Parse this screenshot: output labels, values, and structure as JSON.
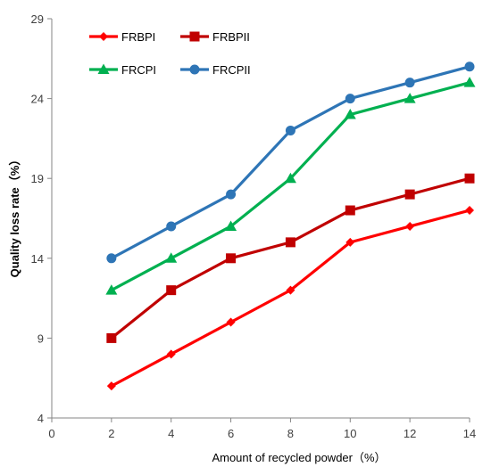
{
  "chart_data": {
    "type": "line",
    "title": "",
    "xlabel": "Amount of recycled powder（%）",
    "ylabel": "Quality loss rate（%）",
    "xlim": [
      0,
      14
    ],
    "ylim": [
      4,
      29
    ],
    "x_ticks": [
      "0",
      "2",
      "4",
      "6",
      "8",
      "10",
      "12",
      "14"
    ],
    "y_ticks": [
      "4",
      "9",
      "14",
      "19",
      "24",
      "29"
    ],
    "grid": false,
    "legend_position": "top-left",
    "x": [
      2,
      4,
      6,
      8,
      10,
      12,
      14
    ],
    "series": [
      {
        "name": "FRBPI",
        "color": "#ff0000",
        "marker": "diamond",
        "values": [
          6,
          8,
          10,
          12,
          15,
          16,
          17
        ]
      },
      {
        "name": "FRBPII",
        "color": "#c00000",
        "marker": "square",
        "values": [
          9,
          12,
          14,
          15,
          17,
          18,
          19
        ]
      },
      {
        "name": "FRCPI",
        "color": "#00b050",
        "marker": "triangle",
        "values": [
          12,
          14,
          16,
          19,
          23,
          24,
          25
        ]
      },
      {
        "name": "FRCPII",
        "color": "#2e75b6",
        "marker": "circle",
        "values": [
          14,
          16,
          18,
          22,
          24,
          25,
          26
        ]
      }
    ]
  }
}
